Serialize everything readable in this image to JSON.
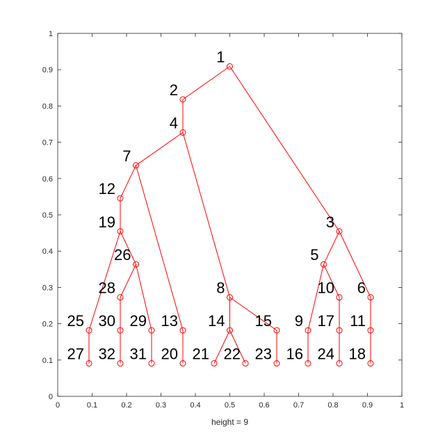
{
  "chart_data": {
    "type": "tree",
    "title": "",
    "xlabel": "height = 9",
    "ylabel": "",
    "xlim": [
      0,
      1
    ],
    "ylim": [
      0,
      1
    ],
    "xticks": [
      0,
      0.1,
      0.2,
      0.3,
      0.4,
      0.5,
      0.6,
      0.7,
      0.8,
      0.9,
      1
    ],
    "xtick_labels": [
      "0",
      "0.1",
      "0.2",
      "0.3",
      "0.4",
      "0.5",
      "0.6",
      "0.7",
      "0.8",
      "0.9",
      "1"
    ],
    "yticks": [
      0,
      0.1,
      0.2,
      0.3,
      0.4,
      0.5,
      0.6,
      0.7,
      0.8,
      0.9,
      1
    ],
    "ytick_labels": [
      "0",
      "0.1",
      "0.2",
      "0.3",
      "0.4",
      "0.5",
      "0.6",
      "0.7",
      "0.8",
      "0.9",
      "1"
    ],
    "grid": false,
    "line_color": "#ff0000",
    "nodes": [
      {
        "id": "1",
        "x": 0.5,
        "y": 0.909,
        "parent": null
      },
      {
        "id": "2",
        "x": 0.3636,
        "y": 0.818,
        "parent": "1"
      },
      {
        "id": "3",
        "x": 0.8182,
        "y": 0.4545,
        "parent": "1"
      },
      {
        "id": "4",
        "x": 0.3636,
        "y": 0.727,
        "parent": "2"
      },
      {
        "id": "5",
        "x": 0.7727,
        "y": 0.3636,
        "parent": "3"
      },
      {
        "id": "6",
        "x": 0.9091,
        "y": 0.2727,
        "parent": "3"
      },
      {
        "id": "7",
        "x": 0.2273,
        "y": 0.6364,
        "parent": "4"
      },
      {
        "id": "8",
        "x": 0.5,
        "y": 0.2727,
        "parent": "4"
      },
      {
        "id": "9",
        "x": 0.7273,
        "y": 0.1818,
        "parent": "5"
      },
      {
        "id": "10",
        "x": 0.8182,
        "y": 0.2727,
        "parent": "5"
      },
      {
        "id": "11",
        "x": 0.9091,
        "y": 0.1818,
        "parent": "6"
      },
      {
        "id": "12",
        "x": 0.1818,
        "y": 0.5455,
        "parent": "7"
      },
      {
        "id": "13",
        "x": 0.3636,
        "y": 0.1818,
        "parent": "7"
      },
      {
        "id": "14",
        "x": 0.5,
        "y": 0.1818,
        "parent": "8"
      },
      {
        "id": "15",
        "x": 0.6364,
        "y": 0.1818,
        "parent": "8"
      },
      {
        "id": "16",
        "x": 0.7273,
        "y": 0.0909,
        "parent": "9"
      },
      {
        "id": "17",
        "x": 0.8182,
        "y": 0.1818,
        "parent": "10"
      },
      {
        "id": "18",
        "x": 0.9091,
        "y": 0.0909,
        "parent": "11"
      },
      {
        "id": "19",
        "x": 0.1818,
        "y": 0.4545,
        "parent": "12"
      },
      {
        "id": "20",
        "x": 0.3636,
        "y": 0.0909,
        "parent": "13"
      },
      {
        "id": "21",
        "x": 0.4545,
        "y": 0.0909,
        "parent": "14"
      },
      {
        "id": "22",
        "x": 0.5455,
        "y": 0.0909,
        "parent": "14"
      },
      {
        "id": "23",
        "x": 0.6364,
        "y": 0.0909,
        "parent": "15"
      },
      {
        "id": "24",
        "x": 0.8182,
        "y": 0.0909,
        "parent": "17"
      },
      {
        "id": "25",
        "x": 0.0909,
        "y": 0.1818,
        "parent": "19"
      },
      {
        "id": "26",
        "x": 0.2273,
        "y": 0.3636,
        "parent": "19"
      },
      {
        "id": "27",
        "x": 0.0909,
        "y": 0.0909,
        "parent": "25"
      },
      {
        "id": "28",
        "x": 0.1818,
        "y": 0.2727,
        "parent": "26"
      },
      {
        "id": "29",
        "x": 0.2727,
        "y": 0.1818,
        "parent": "26"
      },
      {
        "id": "30",
        "x": 0.1818,
        "y": 0.1818,
        "parent": "28"
      },
      {
        "id": "31",
        "x": 0.2727,
        "y": 0.0909,
        "parent": "29"
      },
      {
        "id": "32",
        "x": 0.1818,
        "y": 0.0909,
        "parent": "30"
      }
    ]
  }
}
